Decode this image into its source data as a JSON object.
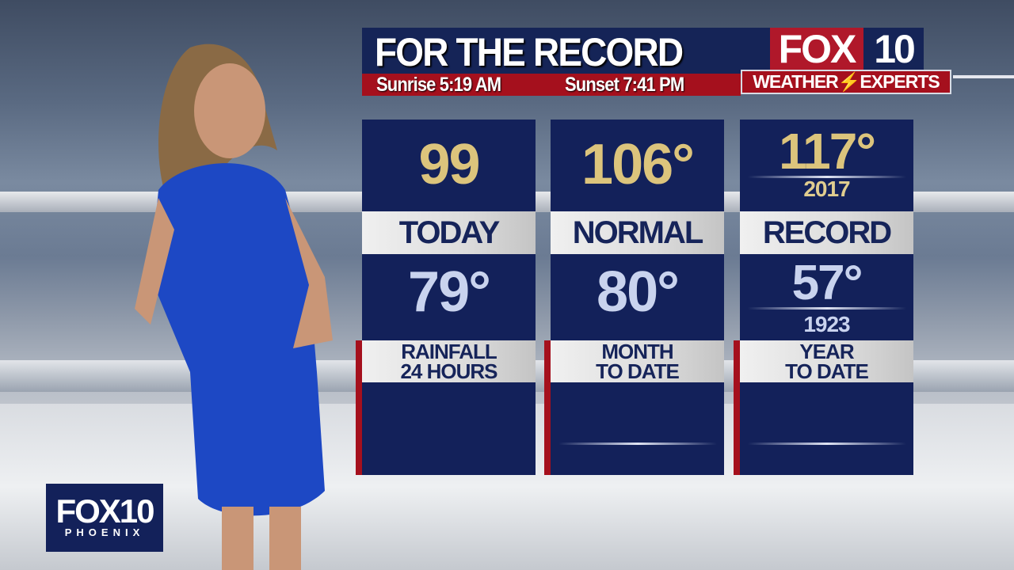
{
  "header": {
    "title": "FOR THE RECORD",
    "sunrise": "Sunrise 5:19 AM",
    "sunset": "Sunset 7:41 PM"
  },
  "brand": {
    "fox": "FOX",
    "ten": "10",
    "tagline_left": "WEATHER",
    "tagline_right": "EXPERTS",
    "corner": "FOX10",
    "corner_sub": "PHOENIX"
  },
  "columns": [
    {
      "high": "99",
      "high_year": "",
      "label": "TODAY",
      "low": "79°",
      "low_year": "",
      "rain_label_1": "RAINFALL",
      "rain_label_2": "24 HOURS",
      "rain_value": ""
    },
    {
      "high": "106°",
      "high_year": "",
      "label": "NORMAL",
      "low": "80°",
      "low_year": "",
      "rain_label_1": "MONTH",
      "rain_label_2": "TO DATE",
      "rain_value": ""
    },
    {
      "high": "117°",
      "high_year": "2017",
      "label": "RECORD",
      "low": "57°",
      "low_year": "1923",
      "rain_label_1": "YEAR",
      "rain_label_2": "TO DATE",
      "rain_value": ""
    }
  ],
  "colors": {
    "navy": "#13215a",
    "red": "#a5101d",
    "gold": "#dcc47c",
    "light_blue": "#c9d3ee"
  }
}
